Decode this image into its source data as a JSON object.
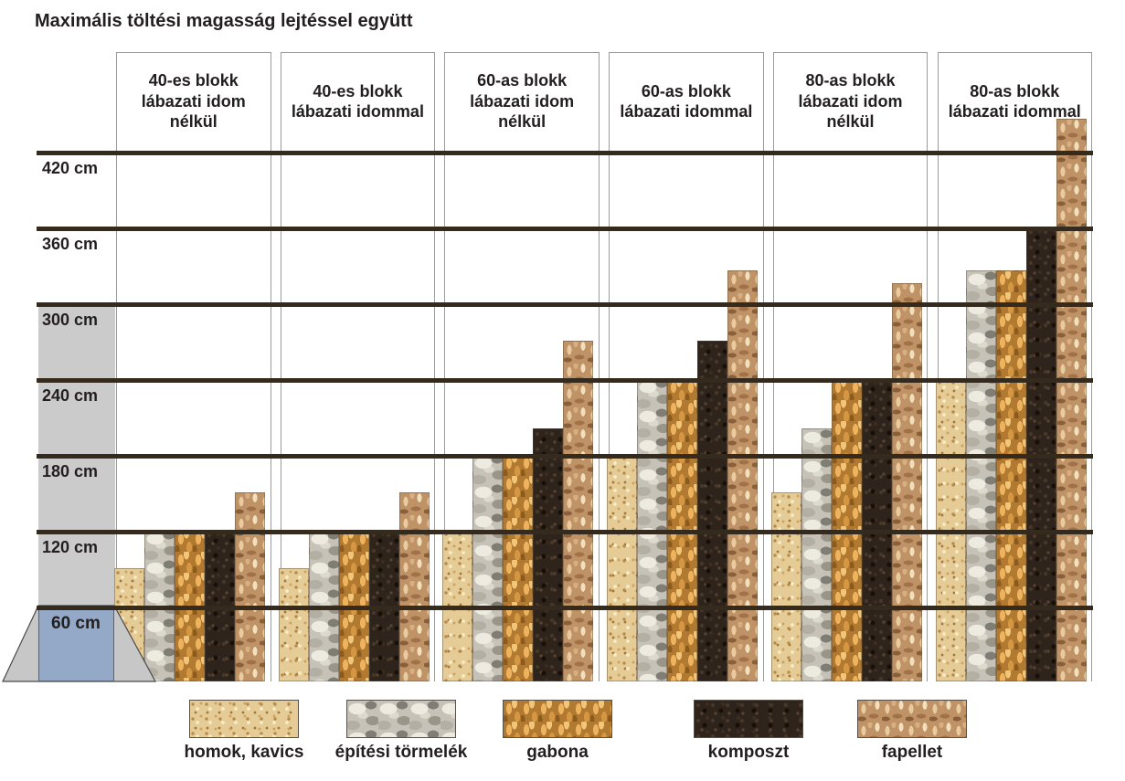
{
  "title": "Maximális töltési magasság lejtéssel együtt",
  "y_axis": {
    "unit": "cm",
    "ticks": [
      {
        "label": "420 cm",
        "value": 420
      },
      {
        "label": "360 cm",
        "value": 360
      },
      {
        "label": "300 cm",
        "value": 300
      },
      {
        "label": "240 cm",
        "value": 240
      },
      {
        "label": "180 cm",
        "value": 180
      },
      {
        "label": "120 cm",
        "value": 120
      },
      {
        "label": "60 cm",
        "value": 60
      }
    ]
  },
  "base_graphic": {
    "label": "60 cm"
  },
  "legend": [
    {
      "id": "homok",
      "label": "homok, kavics"
    },
    {
      "id": "tormelek",
      "label": "építési törmelék"
    },
    {
      "id": "gabona",
      "label": "gabona"
    },
    {
      "id": "komposzt",
      "label": "komposzt"
    },
    {
      "id": "fapellet",
      "label": "fapellet"
    }
  ],
  "chart_data": {
    "type": "bar",
    "title": "Maximális töltési magasság lejtéssel együtt",
    "unit": "cm",
    "ylim": [
      0,
      480
    ],
    "grid": true,
    "gridlines_cm": [
      60,
      120,
      180,
      240,
      300,
      360,
      420
    ],
    "legend_position": "bottom",
    "categories": [
      "40-es blokk lábazati idom nélkül",
      "40-es blokk lábazati idommal",
      "60-as blokk lábazati idom nélkül",
      "60-as blokk lábazati idommal",
      "80-as blokk lábazati idom nélkül",
      "80-as blokk lábazati idommal"
    ],
    "series": [
      {
        "name": "homok, kavics",
        "texture": "homok",
        "values": [
          90,
          90,
          120,
          180,
          150,
          240
        ]
      },
      {
        "name": "építési törmelék",
        "texture": "tormelek",
        "values": [
          120,
          120,
          180,
          240,
          200,
          325
        ]
      },
      {
        "name": "gabona",
        "texture": "gabona",
        "values": [
          120,
          120,
          180,
          240,
          240,
          325
        ]
      },
      {
        "name": "komposzt",
        "texture": "komposzt",
        "values": [
          120,
          120,
          200,
          270,
          240,
          360
        ]
      },
      {
        "name": "fapellet",
        "texture": "fapellet",
        "values": [
          150,
          150,
          270,
          325,
          315,
          445
        ]
      }
    ]
  },
  "colors": {
    "gridline": "#342a1e",
    "box_border": "#9b9b9b",
    "label_band_gray": "#cbcbcb",
    "slope_gray": "#c7c7c7",
    "slope_outline": "#4a4a4a",
    "base_blue": "#93a9c7",
    "text": "#231f20"
  }
}
